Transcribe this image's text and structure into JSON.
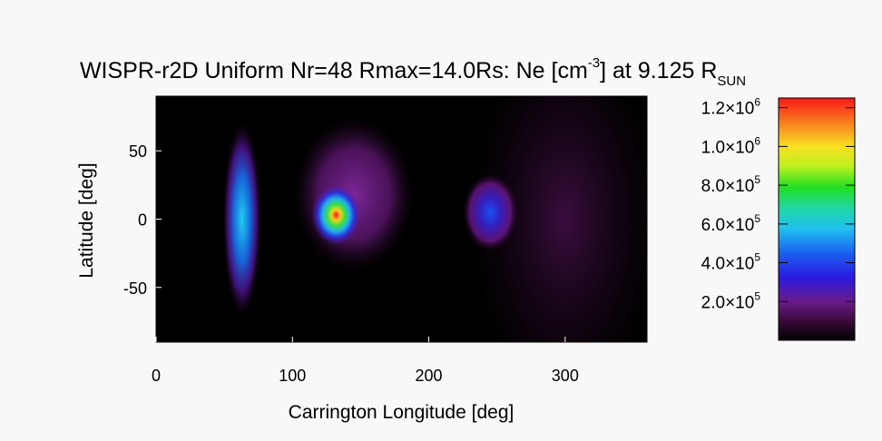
{
  "chart_data": {
    "type": "heatmap",
    "title": {
      "main": "WISPR-r2D Uniform Nr=48 Rmax=14.0Rs: Ne [cm",
      "unit_exp": "-3",
      "mid": "] at 9.125 R",
      "subscript": "SUN"
    },
    "xlabel": "Carrington Longitude [deg]",
    "ylabel": "Latitude [deg]",
    "xlim": [
      0,
      360
    ],
    "ylim": [
      -90,
      90
    ],
    "xticks": [
      "0",
      "100",
      "200",
      "300"
    ],
    "yticks": [
      "50",
      "0",
      "-50"
    ],
    "colorbar": {
      "range": [
        0,
        1250000
      ],
      "ticks": [
        {
          "value": 200000,
          "base": "2.0×10",
          "exp": "5"
        },
        {
          "value": 400000,
          "base": "4.0×10",
          "exp": "5"
        },
        {
          "value": 600000,
          "base": "6.0×10",
          "exp": "5"
        },
        {
          "value": 800000,
          "base": "8.0×10",
          "exp": "5"
        },
        {
          "value": 1000000,
          "base": "1.0×10",
          "exp": "6"
        },
        {
          "value": 1200000,
          "base": "1.2×10",
          "exp": "6"
        }
      ]
    },
    "features": [
      {
        "name": "band-lon60",
        "lon": 63,
        "lat": 0,
        "sigma_lon": 7,
        "sigma_lat": 35,
        "peak": 430000
      },
      {
        "name": "blob-lon130",
        "lon": 132,
        "lat": 3,
        "sigma_lon": 9,
        "sigma_lat": 11,
        "peak": 1200000
      },
      {
        "name": "halo-lon140",
        "lon": 145,
        "lat": 18,
        "sigma_lon": 22,
        "sigma_lat": 28,
        "peak": 160000
      },
      {
        "name": "blob-lon245",
        "lon": 245,
        "lat": 5,
        "sigma_lon": 10,
        "sigma_lat": 14,
        "peak": 380000
      },
      {
        "name": "diffuse-lon300",
        "lon": 300,
        "lat": 0,
        "sigma_lon": 35,
        "sigma_lat": 70,
        "peak": 90000
      }
    ]
  }
}
